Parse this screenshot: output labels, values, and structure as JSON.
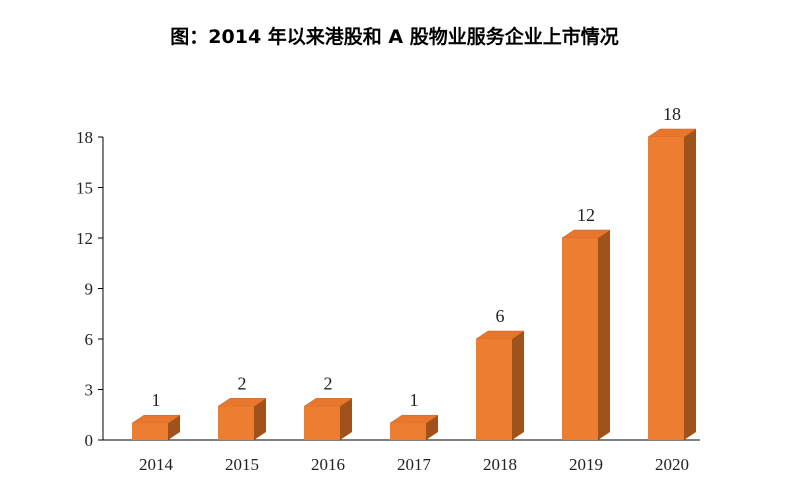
{
  "title": "图：2014 年以来港股和 A 股物业服务企业上市情况",
  "colors": {
    "front": "#ED7D31",
    "top": "#E8762C",
    "side": "#A0521D",
    "axis": "#000000"
  },
  "chart_data": {
    "type": "bar",
    "title": "图：2014 年以来港股和 A 股物业服务企业上市情况",
    "categories": [
      "2014",
      "2015",
      "2016",
      "2017",
      "2018",
      "2019",
      "2020"
    ],
    "values": [
      1,
      2,
      2,
      1,
      6,
      12,
      18
    ],
    "ylim": [
      0,
      18
    ],
    "yticks": [
      0,
      3,
      6,
      9,
      12,
      15,
      18
    ],
    "grid": false,
    "legend": "none",
    "style": "3d-column",
    "data_labels": true
  }
}
